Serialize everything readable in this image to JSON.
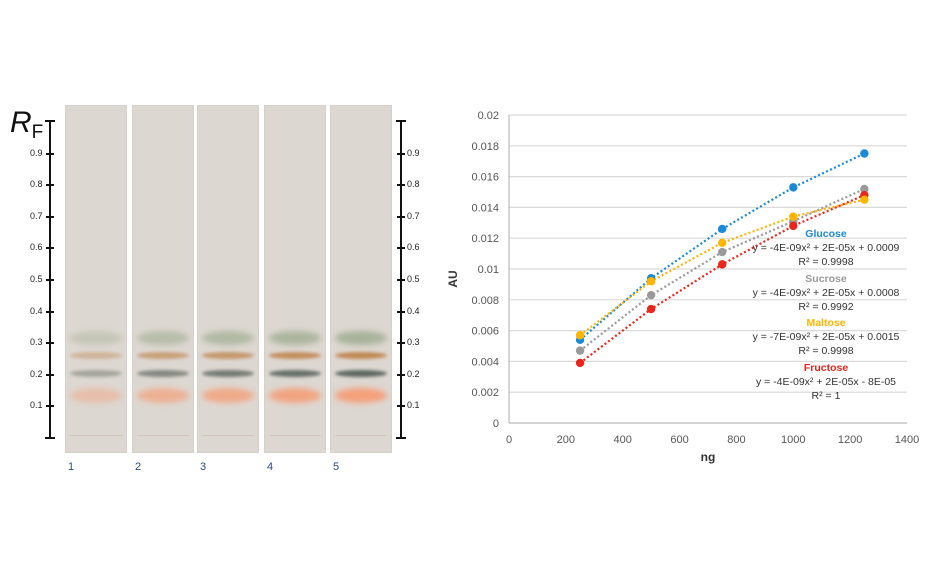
{
  "tlc_plate": {
    "axis_label": "R",
    "axis_label_sub": "F",
    "ticks": [
      "0.9",
      "0.8",
      "0.7",
      "0.6",
      "0.5",
      "0.4",
      "0.3",
      "0.2",
      "0.1"
    ],
    "lanes": [
      "1",
      "2",
      "3",
      "4",
      "5"
    ],
    "band_colors": {
      "green_rf_0_32": "#a8b39a",
      "brown_rf_0_26": "#c08a55",
      "dark_rf_0_20": "#5e6860",
      "orange_rf_0_13": "#f4a07a"
    }
  },
  "chart_data": {
    "type": "scatter",
    "title": "",
    "xlabel": "ng",
    "ylabel": "AU",
    "xlim": [
      0,
      1400
    ],
    "ylim": [
      0,
      0.02
    ],
    "x_ticks": [
      "0",
      "200",
      "400",
      "600",
      "800",
      "1000",
      "1200",
      "1400"
    ],
    "y_ticks": [
      "0",
      "0.002",
      "0.004",
      "0.006",
      "0.008",
      "0.01",
      "0.012",
      "0.014",
      "0.016",
      "0.018",
      "0.02"
    ],
    "grid": true,
    "x": [
      250,
      500,
      750,
      1000,
      1250
    ],
    "series": [
      {
        "name": "Glucose",
        "color": "#1a8ad4",
        "values": [
          0.0054,
          0.0094,
          0.0126,
          0.0153,
          0.0175
        ],
        "equation": "y = -4E-09x² + 2E-05x + 0.0009",
        "r2": "R² = 0.9998"
      },
      {
        "name": "Sucrose",
        "color": "#9a9a9a",
        "values": [
          0.0047,
          0.0083,
          0.0111,
          0.0131,
          0.0152
        ],
        "equation": "y = -4E-09x² + 2E-05x + 0.0008",
        "r2": "R² = 0.9992"
      },
      {
        "name": "Maltose",
        "color": "#ffb400",
        "values": [
          0.0057,
          0.0092,
          0.0117,
          0.0134,
          0.0145
        ],
        "equation": "y = -7E-09x² + 2E-05x + 0.0015",
        "r2": "R² = 0.9998"
      },
      {
        "name": "Fructose",
        "color": "#e8261c",
        "values": [
          0.0039,
          0.0074,
          0.0103,
          0.0128,
          0.0148
        ],
        "equation": "y = -4E-09x² + 2E-05x - 8E-05",
        "r2": "R² = 1"
      }
    ]
  }
}
